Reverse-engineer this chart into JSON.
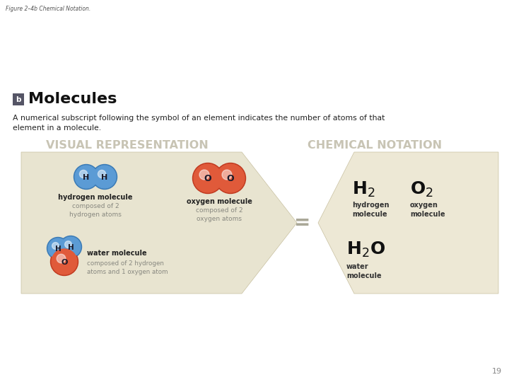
{
  "fig_label": "Figure 2–4b Chemical Notation.",
  "title": "Molecules",
  "title_letter": "b",
  "subtitle": "A numerical subscript following the symbol of an element indicates the number of atoms of that\nelement in a molecule.",
  "visual_header": "VISUAL REPRESENTATION",
  "chemical_header": "CHEMICAL NOTATION",
  "header_color": "#c8c4b4",
  "background_color": "#ffffff",
  "hex_fill_left": "#e8e4d0",
  "hex_fill_right": "#ede8d5",
  "hex_edge_color": "#c8c0a0",
  "hydrogen_color": "#5b9bd5",
  "oxygen_color": "#e05a3a",
  "hydrogen_color_dark": "#3a7ab5",
  "oxygen_color_dark": "#c03a20",
  "h_label": "H",
  "o_label": "O",
  "hydrogen_molecule_label": "hydrogen molecule",
  "hydrogen_molecule_desc": "composed of 2\nhydrogen atoms",
  "oxygen_molecule_label": "oxygen molecule",
  "oxygen_molecule_desc": "composed of 2\noxygen atoms",
  "water_molecule_label": "water molecule",
  "water_molecule_desc": "composed of 2 hydrogen\natoms and 1 oxygen atom",
  "h2_sub_label": "hydrogen\nmolecule",
  "o2_sub_label": "oxygen\nmolecule",
  "h2o_sub_label": "water\nmolecule",
  "page_number": "19"
}
